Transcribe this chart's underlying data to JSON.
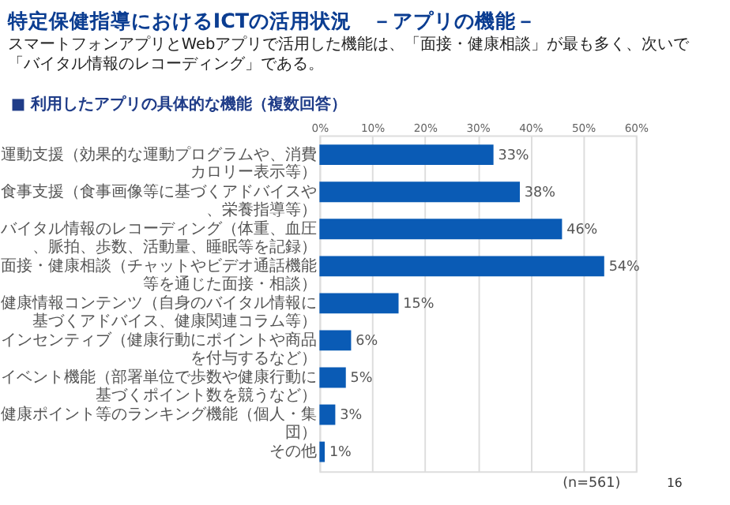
{
  "chart_data": {
    "type": "bar",
    "orientation": "horizontal",
    "title": "特定保健指導におけるICTの活用状況　－アプリの機能－",
    "subtitle": "スマートフォンアプリとWebアプリで活用した機能は、「面接・健康相談」が最も多く、次いで「バイタル情報のレコーディング」である。",
    "categories": [
      "運動支援（効果的な運動プログラムや、消費カロリー表示等）",
      "食事支援（食事画像等に基づくアドバイスや、栄養指導等）",
      "バイタル情報のレコーディング（体重、血圧、脈拍、歩数、活動量、睡眠等を記録）",
      "面接・健康相談（チャットやビデオ通話機能等を通じた面接・相談）",
      "健康情報コンテンツ（自身のバイタル情報に基づくアドバイス、健康関連コラム等）",
      "インセンティブ（健康行動にポイントや商品を付与するなど）",
      "イベント機能（部署単位で歩数や健康行動に基づくポイント数を競うなど）",
      "健康ポイント等のランキング機能（個人・集団）",
      "その他"
    ],
    "values": [
      33,
      38,
      46,
      54,
      15,
      6,
      5,
      3,
      1
    ],
    "value_labels": [
      "33%",
      "38%",
      "46%",
      "54%",
      "15%",
      "6%",
      "5%",
      "3%",
      "1%"
    ],
    "color": "#0a5bb5",
    "xlim": [
      0,
      60
    ],
    "xticks": [
      {
        "value": 0,
        "label": "0%"
      },
      {
        "value": 10,
        "label": "10%"
      },
      {
        "value": 20,
        "label": "20%"
      },
      {
        "value": 30,
        "label": "30%"
      },
      {
        "value": 40,
        "label": "40%"
      },
      {
        "value": 50,
        "label": "50%"
      },
      {
        "value": 60,
        "label": "60%"
      }
    ],
    "grid": "x",
    "annotations": [
      "■ 利用したアプリの具体的な機能（複数回答）",
      "(n=561)",
      "16"
    ]
  }
}
